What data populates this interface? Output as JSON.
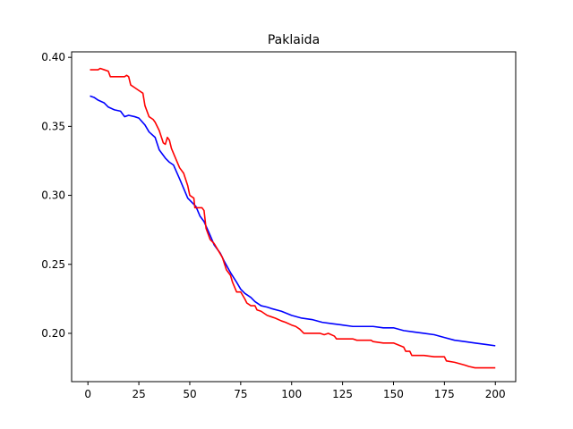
{
  "chart_data": {
    "type": "line",
    "title": "Paklaida",
    "xlabel": "",
    "ylabel": "",
    "xlim": [
      -8,
      210
    ],
    "ylim": [
      0.165,
      0.404
    ],
    "x_ticks": [
      0,
      25,
      50,
      75,
      100,
      125,
      150,
      175,
      200
    ],
    "y_ticks": [
      0.2,
      0.25,
      0.3,
      0.35,
      0.4
    ],
    "grid": false,
    "legend": "none",
    "series": [
      {
        "color": "#0000ff",
        "points": [
          [
            1,
            0.372
          ],
          [
            3,
            0.371
          ],
          [
            5,
            0.369
          ],
          [
            8,
            0.367
          ],
          [
            10,
            0.364
          ],
          [
            13,
            0.362
          ],
          [
            16,
            0.361
          ],
          [
            18,
            0.357
          ],
          [
            20,
            0.358
          ],
          [
            23,
            0.357
          ],
          [
            25,
            0.356
          ],
          [
            28,
            0.351
          ],
          [
            30,
            0.346
          ],
          [
            33,
            0.342
          ],
          [
            35,
            0.333
          ],
          [
            38,
            0.327
          ],
          [
            40,
            0.324
          ],
          [
            42,
            0.322
          ],
          [
            45,
            0.312
          ],
          [
            47,
            0.305
          ],
          [
            49,
            0.298
          ],
          [
            51,
            0.295
          ],
          [
            53,
            0.292
          ],
          [
            55,
            0.285
          ],
          [
            57,
            0.281
          ],
          [
            60,
            0.271
          ],
          [
            62,
            0.264
          ],
          [
            65,
            0.258
          ],
          [
            67,
            0.252
          ],
          [
            70,
            0.244
          ],
          [
            73,
            0.237
          ],
          [
            75,
            0.232
          ],
          [
            77,
            0.229
          ],
          [
            80,
            0.226
          ],
          [
            82,
            0.223
          ],
          [
            85,
            0.22
          ],
          [
            88,
            0.219
          ],
          [
            90,
            0.218
          ],
          [
            95,
            0.216
          ],
          [
            100,
            0.213
          ],
          [
            105,
            0.211
          ],
          [
            110,
            0.21
          ],
          [
            115,
            0.208
          ],
          [
            120,
            0.207
          ],
          [
            125,
            0.206
          ],
          [
            130,
            0.205
          ],
          [
            140,
            0.205
          ],
          [
            145,
            0.204
          ],
          [
            150,
            0.204
          ],
          [
            155,
            0.202
          ],
          [
            160,
            0.201
          ],
          [
            165,
            0.2
          ],
          [
            170,
            0.199
          ],
          [
            175,
            0.197
          ],
          [
            180,
            0.195
          ],
          [
            185,
            0.194
          ],
          [
            190,
            0.193
          ],
          [
            195,
            0.192
          ],
          [
            200,
            0.191
          ]
        ]
      },
      {
        "color": "#ff0000",
        "points": [
          [
            1,
            0.391
          ],
          [
            5,
            0.391
          ],
          [
            6,
            0.392
          ],
          [
            8,
            0.391
          ],
          [
            10,
            0.39
          ],
          [
            11,
            0.386
          ],
          [
            18,
            0.386
          ],
          [
            19,
            0.387
          ],
          [
            20,
            0.386
          ],
          [
            21,
            0.38
          ],
          [
            23,
            0.378
          ],
          [
            25,
            0.376
          ],
          [
            27,
            0.374
          ],
          [
            28,
            0.365
          ],
          [
            30,
            0.357
          ],
          [
            32,
            0.355
          ],
          [
            33,
            0.353
          ],
          [
            35,
            0.347
          ],
          [
            37,
            0.338
          ],
          [
            38,
            0.337
          ],
          [
            39,
            0.342
          ],
          [
            40,
            0.34
          ],
          [
            41,
            0.334
          ],
          [
            43,
            0.327
          ],
          [
            45,
            0.32
          ],
          [
            47,
            0.316
          ],
          [
            49,
            0.307
          ],
          [
            50,
            0.3
          ],
          [
            52,
            0.298
          ],
          [
            52.5,
            0.291
          ],
          [
            56,
            0.291
          ],
          [
            57,
            0.289
          ],
          [
            58,
            0.276
          ],
          [
            60,
            0.268
          ],
          [
            62,
            0.265
          ],
          [
            64,
            0.26
          ],
          [
            66,
            0.255
          ],
          [
            68,
            0.246
          ],
          [
            70,
            0.242
          ],
          [
            71,
            0.237
          ],
          [
            73,
            0.23
          ],
          [
            75,
            0.23
          ],
          [
            77,
            0.225
          ],
          [
            78,
            0.222
          ],
          [
            80,
            0.22
          ],
          [
            82,
            0.22
          ],
          [
            83,
            0.217
          ],
          [
            85,
            0.216
          ],
          [
            88,
            0.213
          ],
          [
            90,
            0.212
          ],
          [
            92,
            0.211
          ],
          [
            95,
            0.209
          ],
          [
            97,
            0.208
          ],
          [
            100,
            0.206
          ],
          [
            102,
            0.205
          ],
          [
            104,
            0.203
          ],
          [
            106,
            0.2
          ],
          [
            114,
            0.2
          ],
          [
            116,
            0.199
          ],
          [
            118,
            0.2
          ],
          [
            121,
            0.198
          ],
          [
            122,
            0.196
          ],
          [
            130,
            0.196
          ],
          [
            132,
            0.195
          ],
          [
            139,
            0.195
          ],
          [
            140,
            0.194
          ],
          [
            145,
            0.193
          ],
          [
            150,
            0.193
          ],
          [
            155,
            0.19
          ],
          [
            156,
            0.187
          ],
          [
            158,
            0.187
          ],
          [
            159,
            0.184
          ],
          [
            165,
            0.184
          ],
          [
            170,
            0.183
          ],
          [
            175,
            0.183
          ],
          [
            176,
            0.18
          ],
          [
            180,
            0.179
          ],
          [
            185,
            0.177
          ],
          [
            187,
            0.176
          ],
          [
            190,
            0.175
          ],
          [
            195,
            0.175
          ],
          [
            200,
            0.175
          ]
        ]
      }
    ]
  }
}
